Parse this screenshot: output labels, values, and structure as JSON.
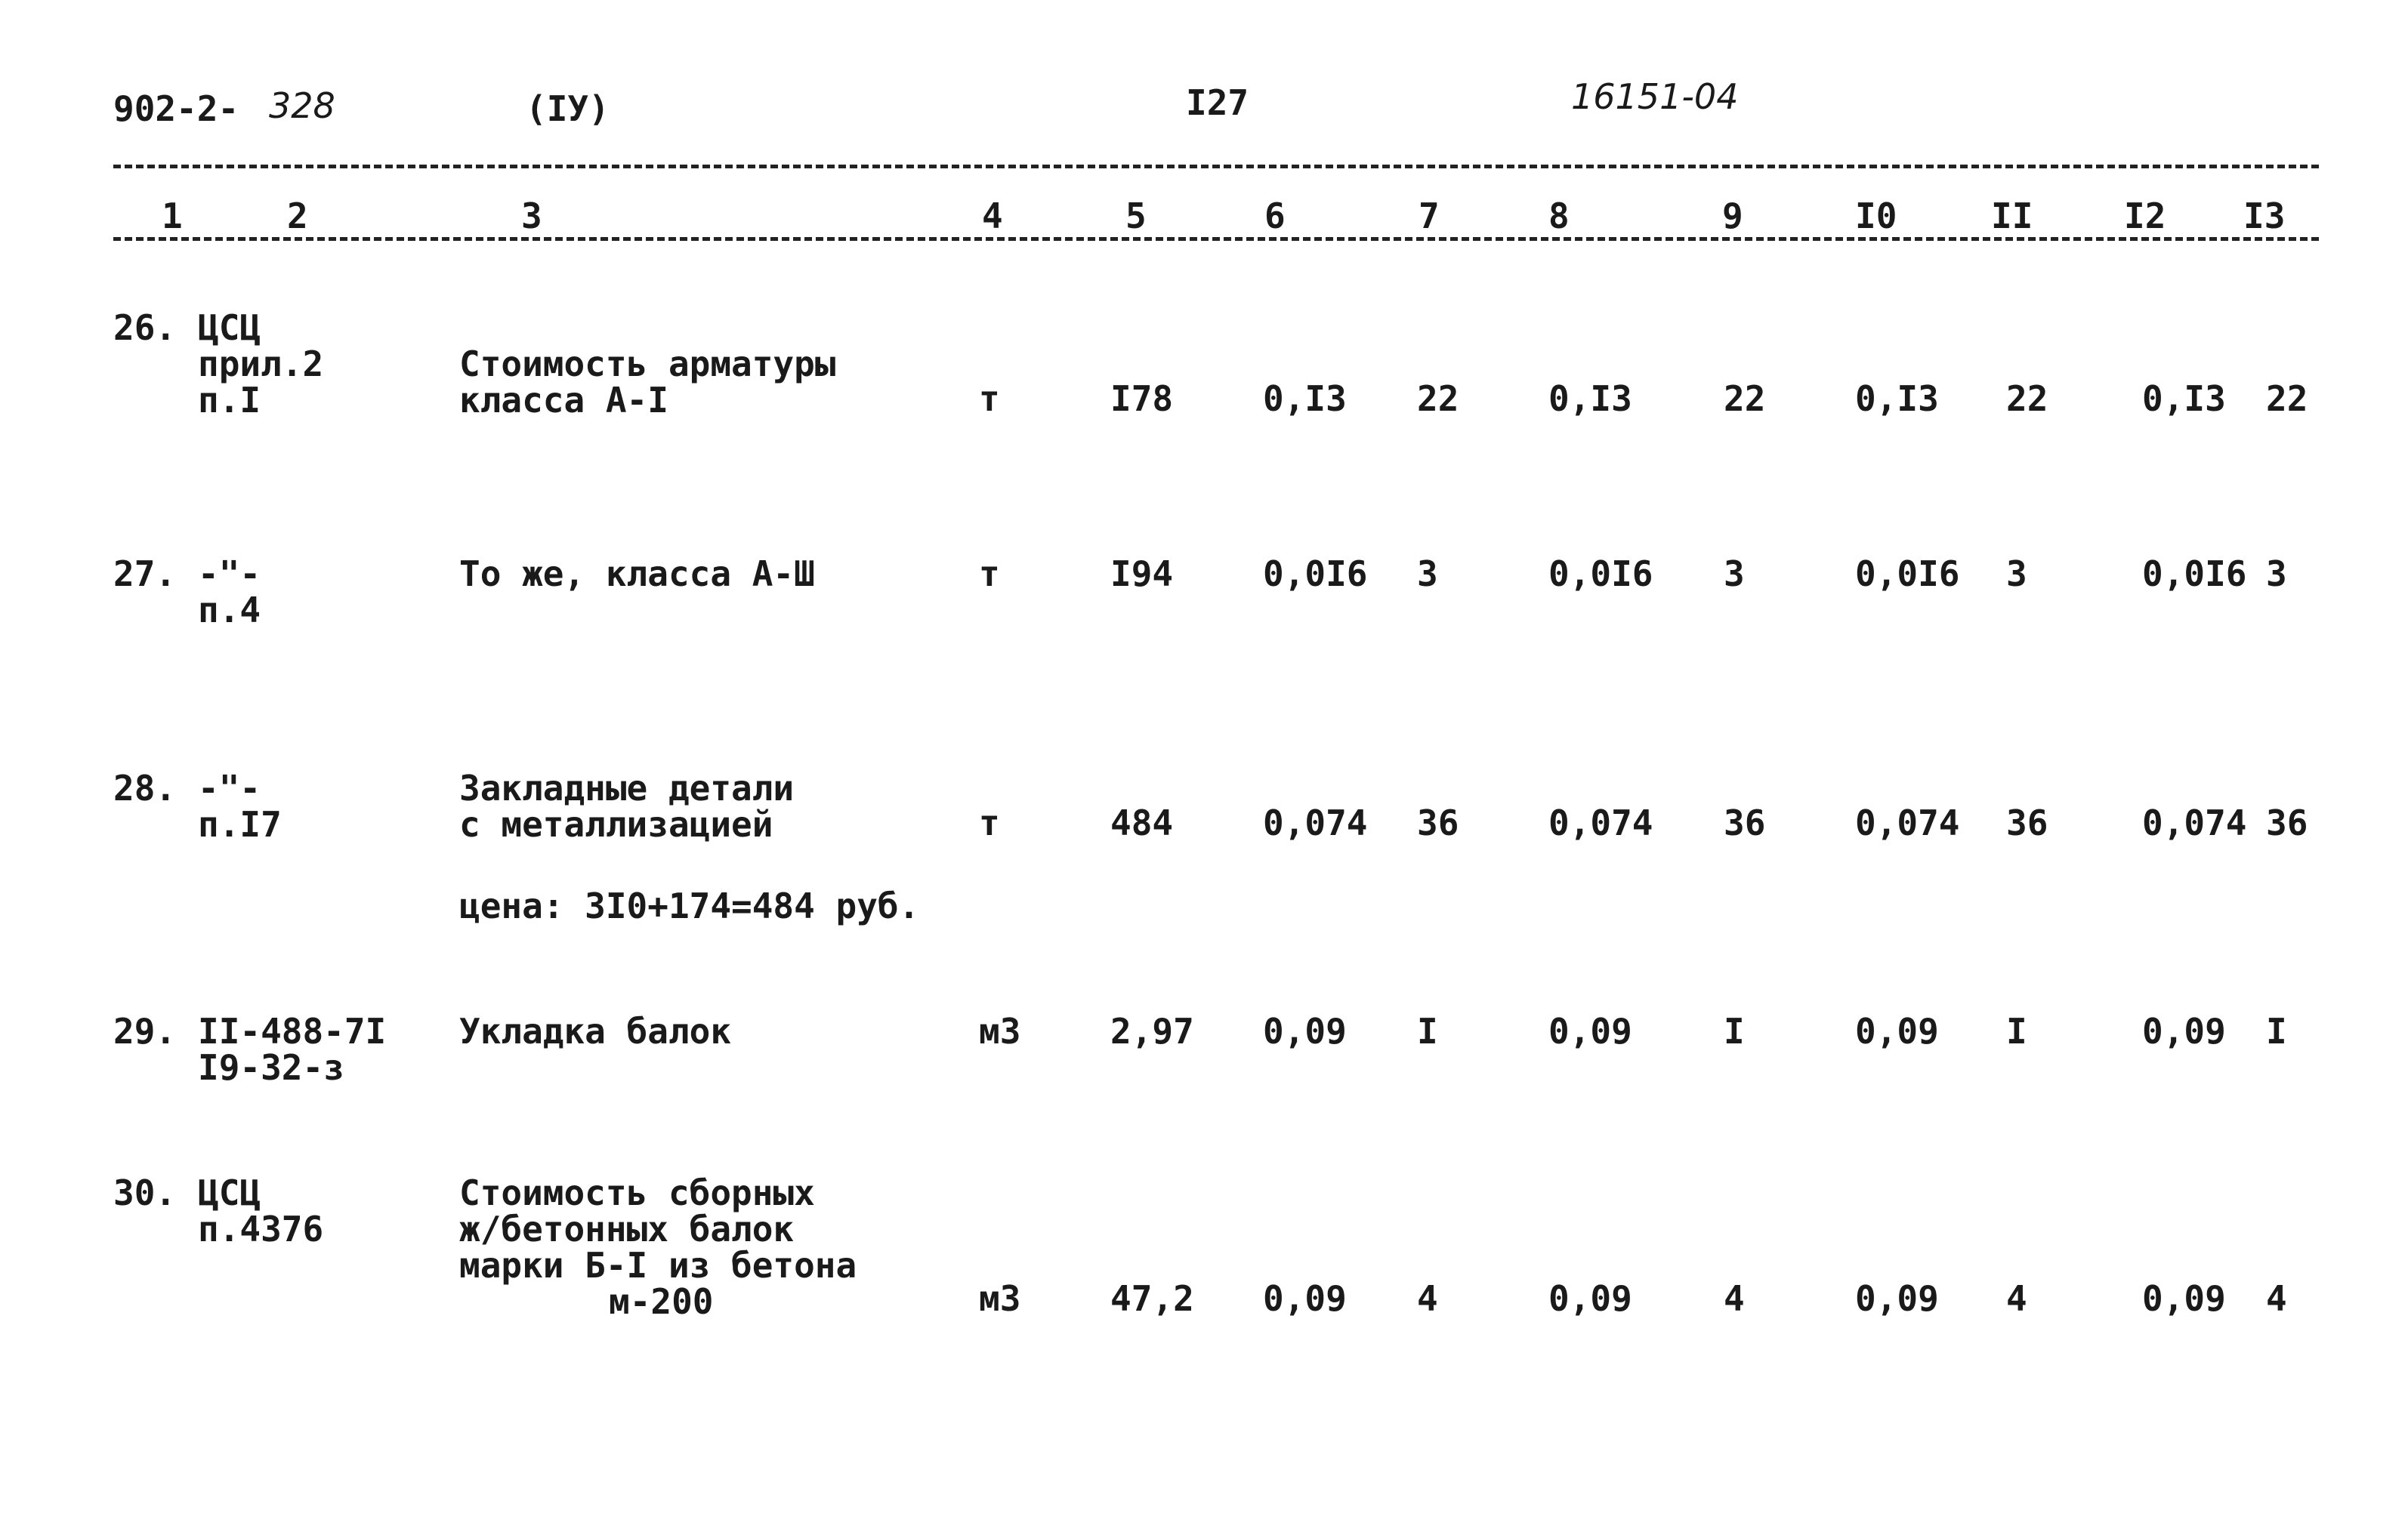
{
  "header": {
    "code_prefix": "902-2-",
    "code_number": "328",
    "section": "(IУ)",
    "page": "I27",
    "document": "16151-04"
  },
  "columns": [
    "1",
    "2",
    "3",
    "4",
    "5",
    "6",
    "7",
    "8",
    "9",
    "I0",
    "II",
    "I2",
    "I3"
  ],
  "rows": [
    {
      "number": "26.",
      "reference": [
        "ЦСЦ",
        "прил.2",
        "п.I"
      ],
      "description": [
        "Стоимость арматуры",
        "класса А-I"
      ],
      "unit": "т",
      "price": "I78",
      "values": [
        "0,I3",
        "22",
        "0,I3",
        "22",
        "0,I3",
        "22",
        "0,I3",
        "22"
      ]
    },
    {
      "number": "27.",
      "reference": [
        "-\"-",
        "п.4"
      ],
      "description": [
        "То же, класса А-Ш"
      ],
      "unit": "т",
      "price": "I94",
      "values": [
        "0,0I6",
        "3",
        "0,0I6",
        "3",
        "0,0I6",
        "3",
        "0,0I6",
        "3"
      ]
    },
    {
      "number": "28.",
      "reference": [
        "-\"-",
        "п.I7"
      ],
      "description": [
        "Закладные детали",
        "с металлизацией"
      ],
      "note": "цена: 3I0+174=484 руб.",
      "unit": "т",
      "price": "484",
      "values": [
        "0,074",
        "36",
        "0,074",
        "36",
        "0,074",
        "36",
        "0,074",
        "36"
      ]
    },
    {
      "number": "29.",
      "reference": [
        "II-488-7I",
        "I9-32-з"
      ],
      "description": [
        "Укладка балок"
      ],
      "unit": "м3",
      "price": "2,97",
      "values": [
        "0,09",
        "I",
        "0,09",
        "I",
        "0,09",
        "I",
        "0,09",
        "I"
      ]
    },
    {
      "number": "30.",
      "reference": [
        "ЦСЦ",
        "п.4376"
      ],
      "description": [
        "Стоимость сборных",
        "ж/бетонных балок",
        "марки Б-I из бетона",
        "м-200"
      ],
      "unit": "м3",
      "price": "47,2",
      "values": [
        "0,09",
        "4",
        "0,09",
        "4",
        "0,09",
        "4",
        "0,09",
        "4"
      ]
    }
  ]
}
